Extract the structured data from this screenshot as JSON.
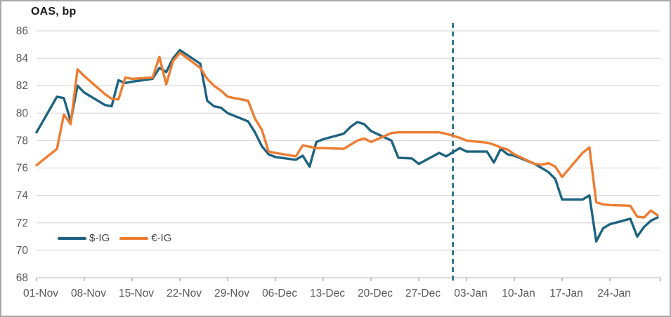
{
  "chart_data": {
    "type": "line",
    "title": "OAS, bp",
    "x_axis": {
      "tick_labels": [
        "01-Nov",
        "08-Nov",
        "15-Nov",
        "22-Nov",
        "29-Nov",
        "06-Dec",
        "13-Dec",
        "20-Dec",
        "27-Dec",
        "03-Jan",
        "10-Jan",
        "17-Jan",
        "24-Jan"
      ],
      "tick_day_offsets": [
        0,
        7,
        14,
        21,
        28,
        35,
        42,
        49,
        56,
        63,
        70,
        77,
        84
      ],
      "domain_days": [
        0,
        91.5
      ]
    },
    "y_axis": {
      "ticks": [
        86,
        84,
        82,
        80,
        78,
        76,
        74,
        72,
        70,
        68
      ],
      "range": [
        68,
        86
      ]
    },
    "grid": true,
    "legend_position": "bottom-left-inside",
    "colors": {
      "grid": "#d9d9d9",
      "axis": "#c6c6c6",
      "tick": "#9b9b9b",
      "label": "#595959"
    },
    "annotations": [
      {
        "type": "vline",
        "day": 61,
        "style": "dashed",
        "color": "#1e6380"
      }
    ],
    "series": [
      {
        "name": "$-IG",
        "color": "#1e6380",
        "points": [
          [
            0,
            78.6
          ],
          [
            3,
            81.2
          ],
          [
            4,
            81.1
          ],
          [
            5,
            79.4
          ],
          [
            6,
            82.0
          ],
          [
            7,
            81.5
          ],
          [
            10,
            80.6
          ],
          [
            11,
            80.5
          ],
          [
            12,
            82.4
          ],
          [
            13,
            82.2
          ],
          [
            14,
            82.3
          ],
          [
            17,
            82.5
          ],
          [
            18,
            83.3
          ],
          [
            19,
            83.0
          ],
          [
            20,
            84.0
          ],
          [
            21,
            84.6
          ],
          [
            24,
            83.6
          ],
          [
            25,
            80.9
          ],
          [
            26,
            80.5
          ],
          [
            27,
            80.4
          ],
          [
            28,
            80.0
          ],
          [
            31,
            79.4
          ],
          [
            32,
            78.6
          ],
          [
            33,
            77.6
          ],
          [
            34,
            77.0
          ],
          [
            35,
            76.8
          ],
          [
            38,
            76.6
          ],
          [
            39,
            76.9
          ],
          [
            40,
            76.1
          ],
          [
            41,
            77.9
          ],
          [
            42,
            78.1
          ],
          [
            45,
            78.5
          ],
          [
            46,
            79.0
          ],
          [
            47,
            79.35
          ],
          [
            48,
            79.2
          ],
          [
            49,
            78.7
          ],
          [
            52,
            78.0
          ],
          [
            53,
            76.75
          ],
          [
            55,
            76.7
          ],
          [
            56,
            76.3
          ],
          [
            59,
            77.1
          ],
          [
            60,
            76.85
          ],
          [
            62,
            77.45
          ],
          [
            63,
            77.2
          ],
          [
            66,
            77.2
          ],
          [
            67,
            76.4
          ],
          [
            68,
            77.4
          ],
          [
            69,
            77.0
          ],
          [
            70,
            76.9
          ],
          [
            73,
            76.3
          ],
          [
            74,
            76.0
          ],
          [
            75,
            75.7
          ],
          [
            76,
            75.2
          ],
          [
            77,
            73.7
          ],
          [
            80,
            73.7
          ],
          [
            81,
            74.0
          ],
          [
            82,
            70.65
          ],
          [
            83,
            71.6
          ],
          [
            84,
            71.9
          ],
          [
            87,
            72.3
          ],
          [
            88,
            71.0
          ],
          [
            89,
            71.7
          ],
          [
            90,
            72.15
          ],
          [
            91,
            72.4
          ]
        ]
      },
      {
        "name": "€-IG",
        "color": "#ed7d31",
        "points": [
          [
            0,
            76.2
          ],
          [
            3,
            77.4
          ],
          [
            4,
            79.9
          ],
          [
            5,
            79.2
          ],
          [
            6,
            83.2
          ],
          [
            7,
            82.7
          ],
          [
            10,
            81.4
          ],
          [
            11,
            81.05
          ],
          [
            12,
            81.0
          ],
          [
            13,
            82.6
          ],
          [
            14,
            82.5
          ],
          [
            17,
            82.6
          ],
          [
            18,
            84.1
          ],
          [
            19,
            82.1
          ],
          [
            20,
            83.8
          ],
          [
            21,
            84.4
          ],
          [
            24,
            83.3
          ],
          [
            25,
            82.5
          ],
          [
            26,
            82.0
          ],
          [
            27,
            81.65
          ],
          [
            28,
            81.2
          ],
          [
            31,
            80.9
          ],
          [
            32,
            79.6
          ],
          [
            33,
            78.8
          ],
          [
            34,
            77.2
          ],
          [
            35,
            77.1
          ],
          [
            38,
            76.85
          ],
          [
            39,
            77.65
          ],
          [
            40,
            77.55
          ],
          [
            41,
            77.45
          ],
          [
            42,
            77.45
          ],
          [
            45,
            77.4
          ],
          [
            46,
            77.7
          ],
          [
            47,
            78.0
          ],
          [
            48,
            78.15
          ],
          [
            49,
            77.9
          ],
          [
            52,
            78.55
          ],
          [
            53,
            78.6
          ],
          [
            55,
            78.6
          ],
          [
            56,
            78.6
          ],
          [
            59,
            78.6
          ],
          [
            60,
            78.5
          ],
          [
            62,
            78.2
          ],
          [
            63,
            78.0
          ],
          [
            66,
            77.85
          ],
          [
            67,
            77.7
          ],
          [
            68,
            77.5
          ],
          [
            69,
            77.35
          ],
          [
            70,
            77.0
          ],
          [
            73,
            76.3
          ],
          [
            74,
            76.25
          ],
          [
            75,
            76.35
          ],
          [
            76,
            76.1
          ],
          [
            77,
            75.35
          ],
          [
            80,
            77.1
          ],
          [
            81,
            77.5
          ],
          [
            82,
            73.5
          ],
          [
            83,
            73.35
          ],
          [
            84,
            73.3
          ],
          [
            87,
            73.25
          ],
          [
            88,
            72.45
          ],
          [
            89,
            72.4
          ],
          [
            90,
            72.9
          ],
          [
            91,
            72.55
          ]
        ]
      }
    ]
  }
}
